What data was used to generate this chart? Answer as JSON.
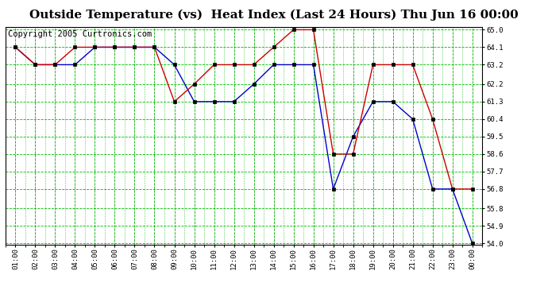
{
  "title": "Outside Temperature (vs)  Heat Index (Last 24 Hours) Thu Jun 16 00:00",
  "copyright": "Copyright 2005 Curtronics.com",
  "x_labels": [
    "01:00",
    "02:00",
    "03:00",
    "04:00",
    "05:00",
    "06:00",
    "07:00",
    "08:00",
    "09:00",
    "10:00",
    "11:00",
    "12:00",
    "13:00",
    "14:00",
    "15:00",
    "16:00",
    "17:00",
    "18:00",
    "19:00",
    "20:00",
    "21:00",
    "22:00",
    "23:00",
    "00:00"
  ],
  "blue_data": [
    64.1,
    63.2,
    63.2,
    63.2,
    64.1,
    64.1,
    64.1,
    64.1,
    63.2,
    61.3,
    61.3,
    61.3,
    62.2,
    63.2,
    63.2,
    63.2,
    56.8,
    59.5,
    61.3,
    61.3,
    60.4,
    56.8,
    56.8,
    54.0
  ],
  "red_data": [
    64.1,
    63.2,
    63.2,
    64.1,
    64.1,
    64.1,
    64.1,
    64.1,
    61.3,
    62.2,
    63.2,
    63.2,
    63.2,
    64.1,
    65.0,
    65.0,
    58.6,
    58.6,
    63.2,
    63.2,
    63.2,
    60.4,
    56.8,
    56.8
  ],
  "ylim_min": 54.0,
  "ylim_max": 65.0,
  "yticks": [
    54.0,
    54.9,
    55.8,
    56.8,
    57.7,
    58.6,
    59.5,
    60.4,
    61.3,
    62.2,
    63.2,
    64.1,
    65.0
  ],
  "blue_color": "#0000cc",
  "red_color": "#cc0000",
  "bg_color": "#ffffff",
  "grid_color": "#00bb00",
  "title_fontsize": 11,
  "copyright_fontsize": 7.5
}
